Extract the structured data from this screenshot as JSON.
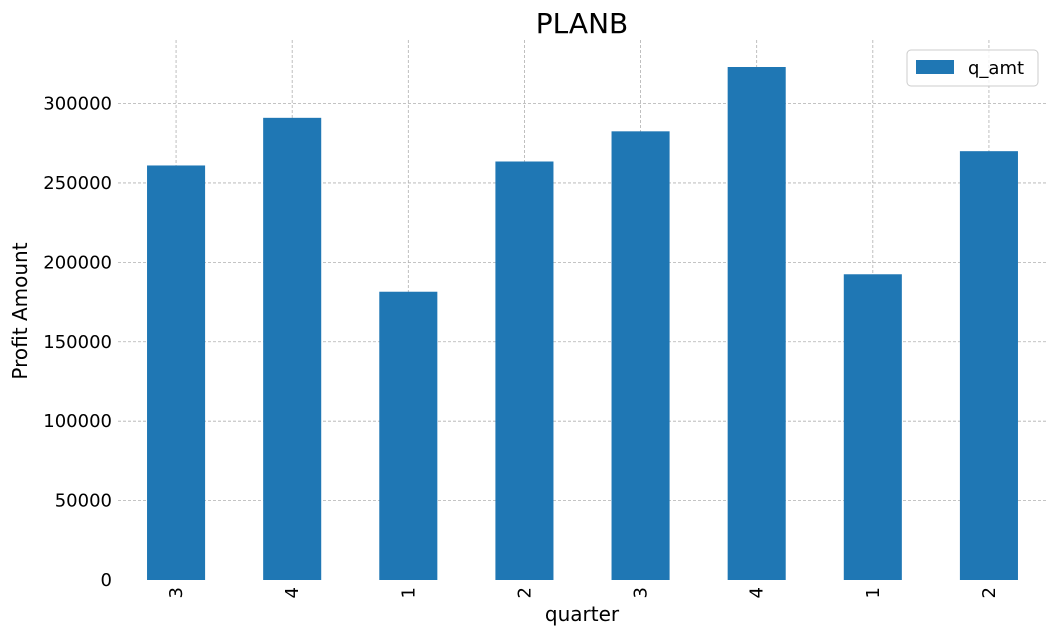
{
  "chart_data": {
    "type": "bar",
    "title": "PLANB",
    "xlabel": "quarter",
    "ylabel": "Profit Amount",
    "categories": [
      "3",
      "4",
      "1",
      "2",
      "3",
      "4",
      "1",
      "2"
    ],
    "series": [
      {
        "name": "q_amt",
        "color": "#1f77b4",
        "values": [
          261000,
          291000,
          181500,
          263500,
          282500,
          323000,
          192500,
          270000
        ]
      }
    ],
    "ylim": [
      0,
      340000
    ],
    "yticks": [
      0,
      50000,
      100000,
      150000,
      200000,
      250000,
      300000
    ],
    "grid": true,
    "legend_position": "top-right",
    "x_tick_rotation": 90
  }
}
